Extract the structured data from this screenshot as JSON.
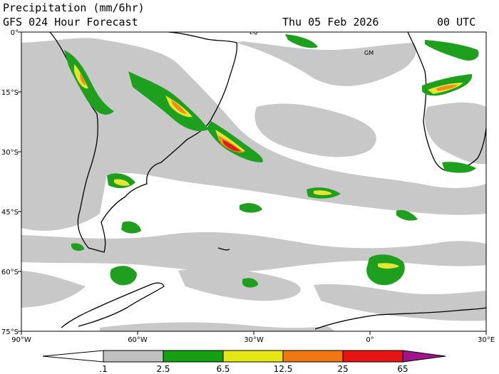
{
  "header": {
    "title": "Precipitation (mm/6hr)",
    "subtitle": "GFS 024 Hour Forecast",
    "date": "Thu 05 Feb 2026",
    "time": "00 UTC"
  },
  "axes": {
    "lat_labels": [
      "0°",
      "15°S",
      "30°S",
      "45°S",
      "60°S",
      "75°S"
    ],
    "lon_labels": [
      "90°W",
      "60°W",
      "30°W",
      "0°",
      "30°E"
    ]
  },
  "markers": {
    "eq": "EQ",
    "gm": "GM"
  },
  "colorbar": {
    "labels": [
      ".1",
      "2.5",
      "6.5",
      "12.5",
      "25",
      "65"
    ],
    "colors": [
      "#ffffff",
      "#c0c0c0",
      "#14a014",
      "#e6e614",
      "#f07814",
      "#e61414",
      "#a0148c"
    ]
  },
  "colors": {
    "light": "#c8c8c8",
    "green": "#1ea01e",
    "yellow": "#e6e632",
    "orange": "#f08c1e",
    "red": "#dc1e1e"
  }
}
